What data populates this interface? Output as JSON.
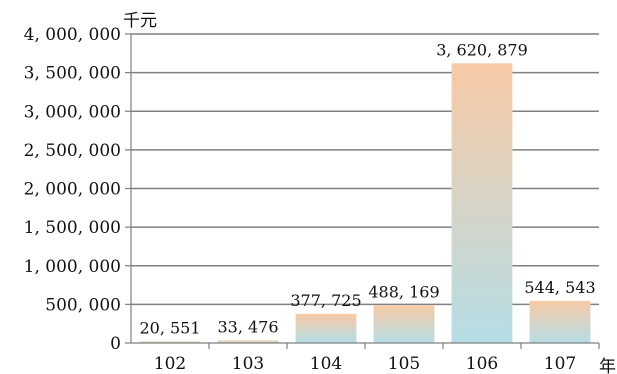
{
  "chart_data": {
    "type": "bar",
    "title": "",
    "categories": [
      "102",
      "103",
      "104",
      "105",
      "106",
      "107"
    ],
    "values": [
      20551,
      33476,
      377725,
      488169,
      3620879,
      544543
    ],
    "data_labels": [
      "20, 551",
      "33, 476",
      "377, 725",
      "488, 169",
      "3, 620, 879",
      "544, 543"
    ],
    "ylabel": "千元",
    "xlabel": "年",
    "ylim": [
      0,
      4000000
    ],
    "yticks": [
      0,
      500000,
      1000000,
      1500000,
      2000000,
      2500000,
      3000000,
      3500000,
      4000000
    ],
    "ytick_labels": [
      "0",
      "500, 000",
      "1, 000, 000",
      "1, 500, 000",
      "2, 000, 000",
      "2, 500, 000",
      "3, 000, 000",
      "3, 500, 000",
      "4, 000, 000"
    ],
    "grid": true,
    "colors": {
      "bar_top": "#f8caa6",
      "bar_bottom": "#b5dde6",
      "grid": "#808080",
      "axis": "#7f7f7f"
    }
  }
}
